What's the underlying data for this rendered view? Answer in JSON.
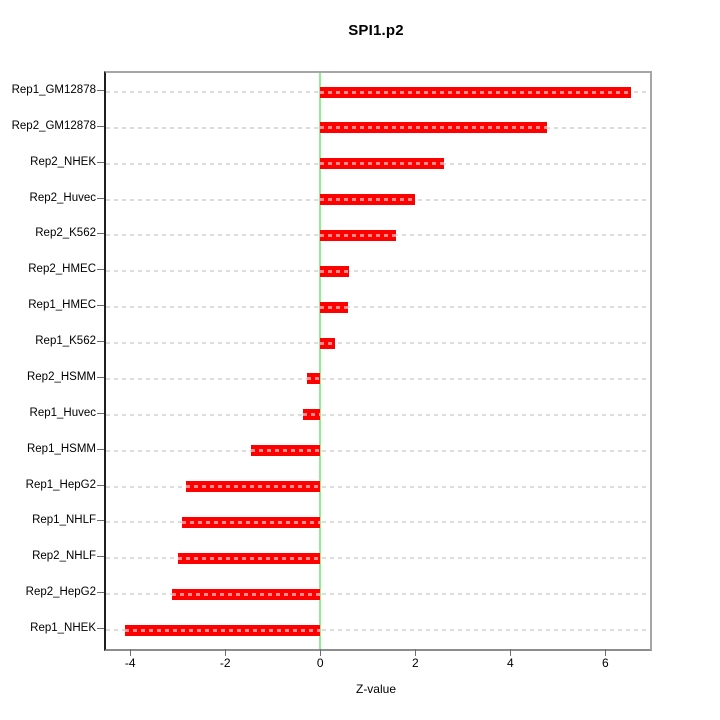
{
  "title": "SPI1.p2",
  "xlabel": "Z-value",
  "chart_data": {
    "type": "bar",
    "orientation": "horizontal",
    "title": "SPI1.p2",
    "xlabel": "Z-value",
    "ylabel": "",
    "categories": [
      "Rep1_GM12878",
      "Rep2_GM12878",
      "Rep2_NHEK",
      "Rep2_Huvec",
      "Rep2_K562",
      "Rep2_HMEC",
      "Rep1_HMEC",
      "Rep1_K562",
      "Rep2_HSMM",
      "Rep1_Huvec",
      "Rep1_HSMM",
      "Rep1_HepG2",
      "Rep1_NHLF",
      "Rep2_NHLF",
      "Rep2_HepG2",
      "Rep1_NHEK"
    ],
    "values": [
      6.53,
      4.77,
      2.6,
      2.0,
      1.59,
      0.6,
      0.58,
      0.3,
      -0.27,
      -0.37,
      -1.45,
      -2.82,
      -2.9,
      -3.0,
      -3.12,
      -4.1
    ],
    "x_ticks": [
      -4,
      -2,
      0,
      2,
      4,
      6
    ],
    "xlim": [
      -4.51,
      6.94
    ],
    "grid": true,
    "legend": false,
    "colors": {
      "bar": "#ff0000",
      "zero_line": "#90ee90",
      "grid": "#dcdcdc",
      "tick": "#6e6e6e",
      "text": "#000000"
    }
  }
}
